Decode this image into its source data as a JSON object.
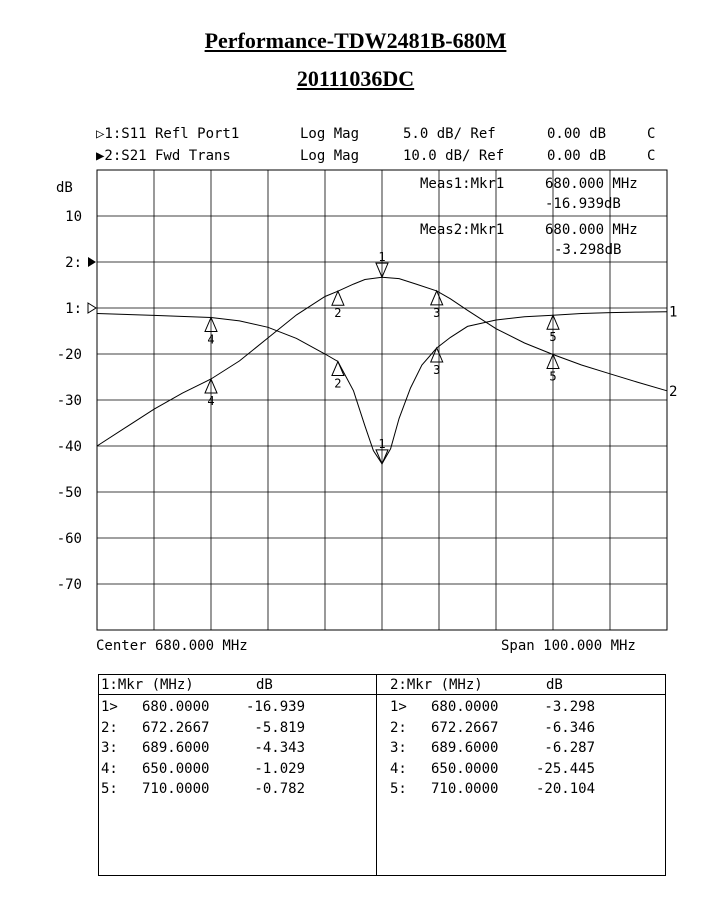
{
  "title_line1": "Performance-TDW2481B-680M",
  "title_line2": "20111036DC",
  "trace_headers": [
    {
      "id": "▷1:S11 Refl Port1",
      "format": "Log Mag",
      "scale": "5.0 dB/ Ref",
      "ref": "0.00 dB",
      "flag": "C"
    },
    {
      "id": "▶2:S21 Fwd Trans",
      "format": "Log Mag",
      "scale": "10.0 dB/ Ref",
      "ref": "0.00 dB",
      "flag": "C"
    }
  ],
  "y_unit": "dB",
  "meas": [
    {
      "label": "Meas1:Mkr1",
      "freq": "680.000 MHz",
      "value": "-16.939dB"
    },
    {
      "label": "Meas2:Mkr1",
      "freq": "680.000 MHz",
      "value": "-3.298dB"
    }
  ],
  "footer": {
    "center": "Center 680.000 MHz",
    "span": "Span 100.000 MHz"
  },
  "chart_data": {
    "type": "line",
    "x_unit": "MHz",
    "xlim": [
      630,
      730
    ],
    "grid": true,
    "ylim": [
      -80,
      20
    ],
    "y_ticks": [
      {
        "label": "10",
        "value": 10
      },
      {
        "label": "2:",
        "value": 0
      },
      {
        "label": "1:",
        "value": -10
      },
      {
        "label": "-20",
        "value": -20
      },
      {
        "label": "-30",
        "value": -30
      },
      {
        "label": "-40",
        "value": -40
      },
      {
        "label": "-50",
        "value": -50
      },
      {
        "label": "-60",
        "value": -60
      },
      {
        "label": "-70",
        "value": -70
      }
    ],
    "series": [
      {
        "name": "1",
        "scale_db_per_div": 5,
        "points": [
          [
            630,
            -0.6
          ],
          [
            640,
            -0.8
          ],
          [
            650,
            -1.029
          ],
          [
            655,
            -1.4
          ],
          [
            660,
            -2.1
          ],
          [
            665,
            -3.3
          ],
          [
            670,
            -5.0
          ],
          [
            672.2667,
            -5.819
          ],
          [
            675,
            -9.0
          ],
          [
            677,
            -12.8
          ],
          [
            678.5,
            -15.5
          ],
          [
            680,
            -16.939
          ],
          [
            681.5,
            -15.3
          ],
          [
            683,
            -12.0
          ],
          [
            685,
            -8.7
          ],
          [
            687,
            -6.2
          ],
          [
            689.6,
            -4.343
          ],
          [
            692,
            -3.2
          ],
          [
            695,
            -2.0
          ],
          [
            700,
            -1.3
          ],
          [
            705,
            -0.95
          ],
          [
            710,
            -0.782
          ],
          [
            715,
            -0.6
          ],
          [
            720,
            -0.5
          ],
          [
            725,
            -0.45
          ],
          [
            730,
            -0.4
          ]
        ]
      },
      {
        "name": "2",
        "scale_db_per_div": 10,
        "points": [
          [
            630,
            -40.0
          ],
          [
            635,
            -36.0
          ],
          [
            640,
            -32.0
          ],
          [
            645,
            -28.5
          ],
          [
            650,
            -25.445
          ],
          [
            655,
            -21.5
          ],
          [
            660,
            -16.5
          ],
          [
            665,
            -11.5
          ],
          [
            670,
            -7.5
          ],
          [
            672.2667,
            -6.346
          ],
          [
            675,
            -4.8
          ],
          [
            677,
            -3.8
          ],
          [
            680,
            -3.298
          ],
          [
            683,
            -3.6
          ],
          [
            686,
            -4.8
          ],
          [
            689.6,
            -6.287
          ],
          [
            692,
            -8.0
          ],
          [
            695,
            -10.5
          ],
          [
            700,
            -14.5
          ],
          [
            705,
            -17.6
          ],
          [
            710,
            -20.104
          ],
          [
            715,
            -22.4
          ],
          [
            720,
            -24.3
          ],
          [
            725,
            -26.2
          ],
          [
            730,
            -28.0
          ]
        ]
      }
    ],
    "markers": [
      {
        "trace": "1",
        "label": "1",
        "x": 680.0,
        "y": -16.939,
        "dir": "down"
      },
      {
        "trace": "1",
        "label": "2",
        "x": 672.2667,
        "y": -5.819,
        "dir": "up"
      },
      {
        "trace": "1",
        "label": "3",
        "x": 689.6,
        "y": -4.343,
        "dir": "up"
      },
      {
        "trace": "1",
        "label": "4",
        "x": 650.0,
        "y": -1.029,
        "dir": "up"
      },
      {
        "trace": "1",
        "label": "5",
        "x": 710.0,
        "y": -0.782,
        "dir": "up"
      },
      {
        "trace": "2",
        "label": "1",
        "x": 680.0,
        "y": -3.298,
        "dir": "down"
      },
      {
        "trace": "2",
        "label": "2",
        "x": 672.2667,
        "y": -6.346,
        "dir": "up"
      },
      {
        "trace": "2",
        "label": "3",
        "x": 689.6,
        "y": -6.287,
        "dir": "up"
      },
      {
        "trace": "2",
        "label": "4",
        "x": 650.0,
        "y": -25.445,
        "dir": "up"
      },
      {
        "trace": "2",
        "label": "5",
        "x": 710.0,
        "y": -20.104,
        "dir": "up"
      }
    ]
  },
  "marker_tables": [
    {
      "header_mkr": "1:Mkr (MHz)",
      "header_db": "dB",
      "rows": [
        {
          "idx": "1>",
          "freq": "680.0000",
          "db": "-16.939"
        },
        {
          "idx": "2:",
          "freq": "672.2667",
          "db": "-5.819"
        },
        {
          "idx": "3:",
          "freq": "689.6000",
          "db": "-4.343"
        },
        {
          "idx": "4:",
          "freq": "650.0000",
          "db": "-1.029"
        },
        {
          "idx": "5:",
          "freq": "710.0000",
          "db": "-0.782"
        }
      ]
    },
    {
      "header_mkr": "2:Mkr (MHz)",
      "header_db": "dB",
      "rows": [
        {
          "idx": "1>",
          "freq": "680.0000",
          "db": "-3.298"
        },
        {
          "idx": "2:",
          "freq": "672.2667",
          "db": "-6.346"
        },
        {
          "idx": "3:",
          "freq": "689.6000",
          "db": "-6.287"
        },
        {
          "idx": "4:",
          "freq": "650.0000",
          "db": "-25.445"
        },
        {
          "idx": "5:",
          "freq": "710.0000",
          "db": "-20.104"
        }
      ]
    }
  ]
}
